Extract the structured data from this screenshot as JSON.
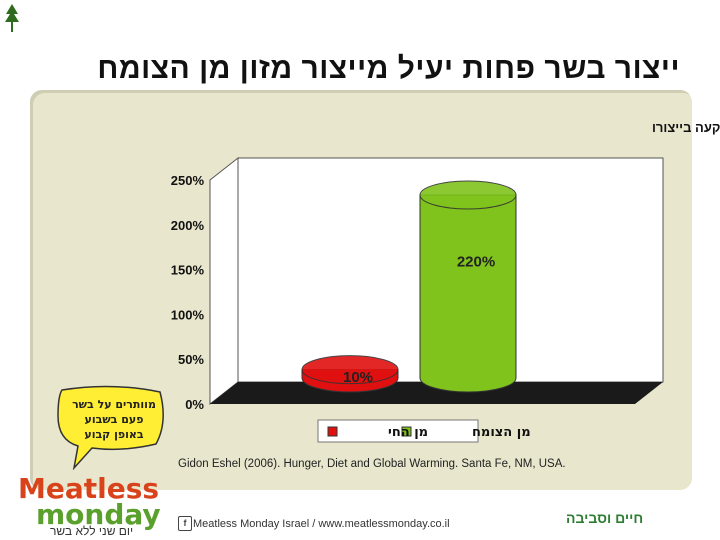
{
  "slide": {
    "title": "ייצור בשר פחות יעיל מייצור מזון מן הצומח",
    "citation": "Gidon Eshel (2006). Hunger, Diet and Global Warming. Santa Fe, NM, USA."
  },
  "bubble_text": [
    "מוותרים על בשר",
    "פעם בשבוע",
    "באופן קבוע"
  ],
  "brand": {
    "logo_word1": "Meatless",
    "logo_word2": "monday",
    "tagline": "יום שני ללא בשר",
    "footer": "Meatless Monday Israel / www.meatlessmonday.co.il",
    "org": "חיים וסביבה"
  },
  "colors": {
    "panel": "#e8e6cc",
    "plant": "#7fc31c",
    "animal": "#e01010",
    "floor": "#1a1a1a"
  },
  "chart_data": {
    "type": "bar",
    "title": "% האנרגיה שמכיל מזון, ביחס לאנרגיה שהושקעה בייצורו",
    "categories": [
      "מן החי",
      "מן הצומח"
    ],
    "values": [
      10,
      220
    ],
    "data_labels": [
      "10%",
      "220%"
    ],
    "yticks": [
      "0%",
      "50%",
      "100%",
      "150%",
      "200%",
      "250%"
    ],
    "ylim": [
      0,
      250
    ],
    "legend": [
      {
        "label": "מן הצומח",
        "color": "#7fc31c"
      },
      {
        "label": "מן החי",
        "color": "#e01010"
      }
    ],
    "legend_position": "bottom"
  }
}
